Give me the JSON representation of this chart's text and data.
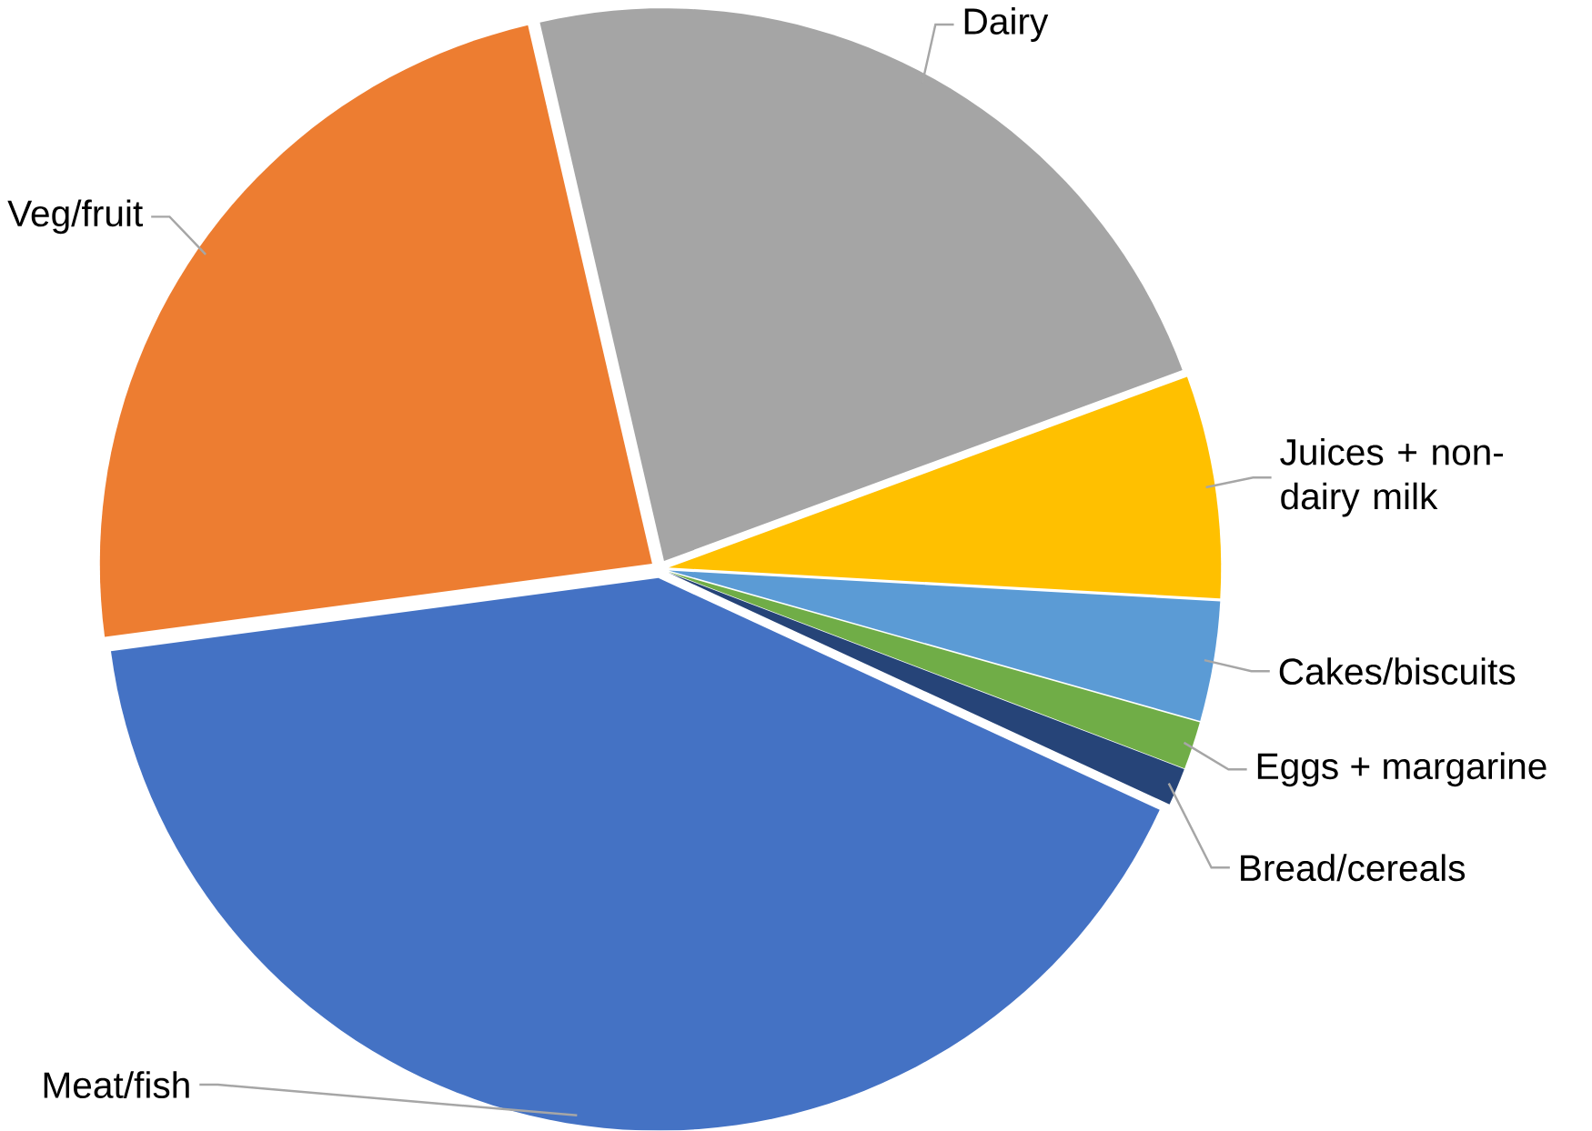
{
  "chart_data": {
    "type": "pie",
    "categories": [
      "Dairy",
      "Juices + non-dairy milk",
      "Cakes/biscuits",
      "Eggs + margarine",
      "Bread/cereals",
      "Meat/fish",
      "Veg/fruit"
    ],
    "values": [
      23,
      6.5,
      3.5,
      1.4,
      1.1,
      41,
      23.5
    ],
    "colors": [
      "#a5a5a5",
      "#ffc000",
      "#5b9bd5",
      "#70ad47",
      "#264478",
      "#4472c4",
      "#ed7d31"
    ]
  }
}
